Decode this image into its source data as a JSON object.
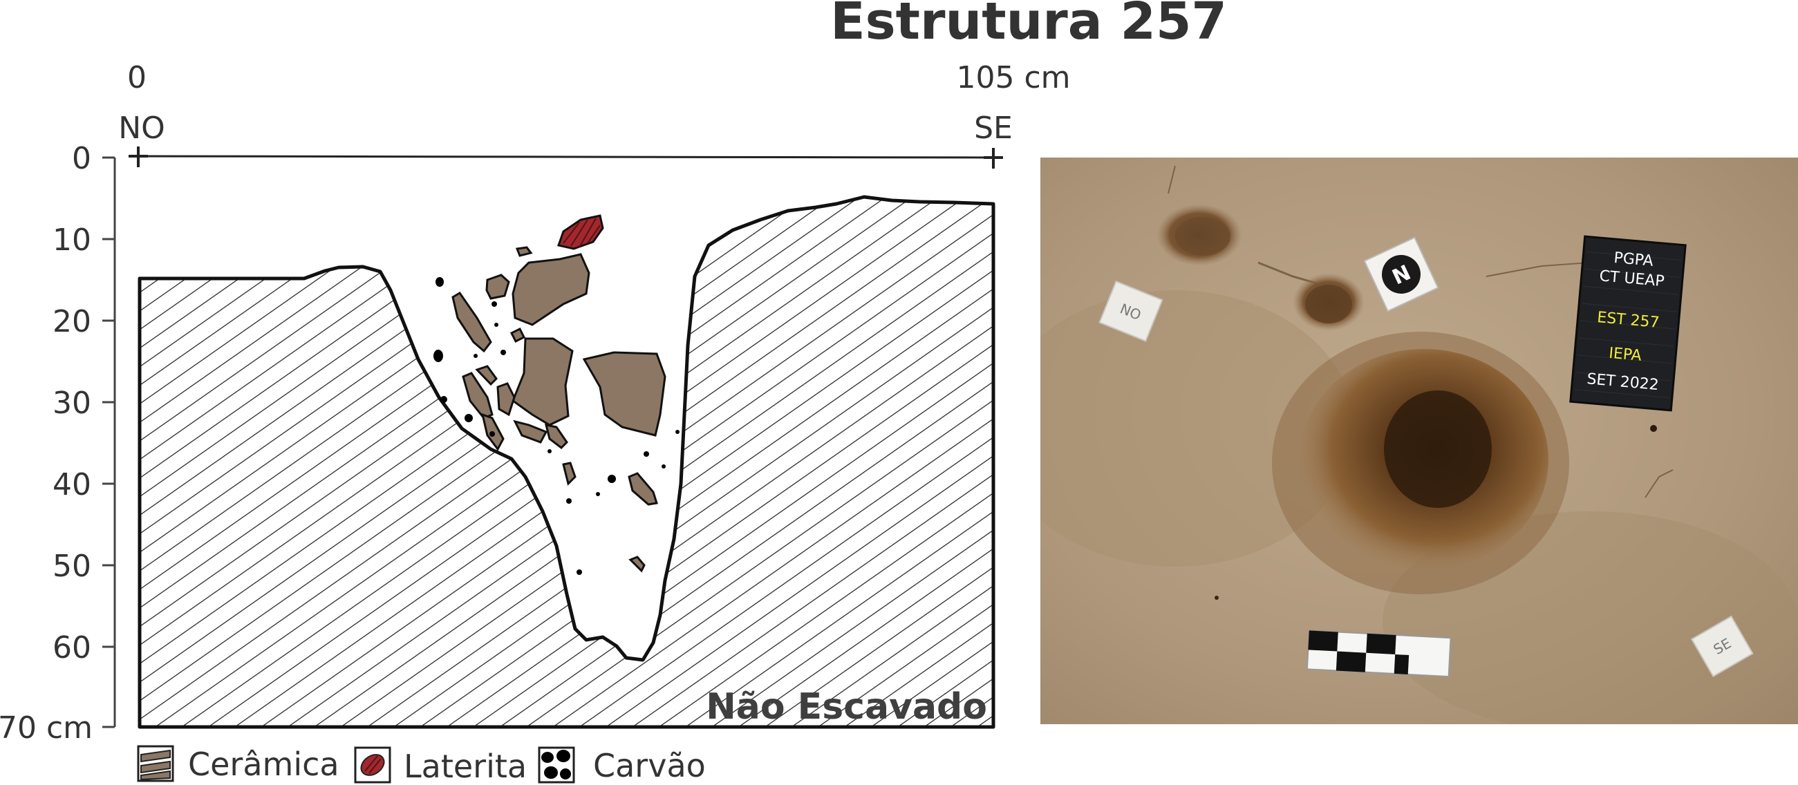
{
  "title": "Estrutura 257",
  "profile": {
    "distance_start": "0",
    "distance_end": "105 cm",
    "direction_left": "NO",
    "direction_right": "SE",
    "depth_ticks": [
      "0",
      "10",
      "20",
      "30",
      "40",
      "50",
      "60",
      "70 cm"
    ],
    "unexcavated_label": "Não Escavado"
  },
  "legend": [
    {
      "label": "Cerâmica",
      "icon": "ceramic-icon",
      "color": "#8b7764"
    },
    {
      "label": "Laterita",
      "icon": "laterite-icon",
      "color": "#a0282e"
    },
    {
      "label": "Carvão",
      "icon": "charcoal-icon",
      "color": "#000000"
    }
  ],
  "photo": {
    "board_lines": [
      "PGPA",
      "CT UEAP",
      "EST 257",
      "IEPA",
      "SET 2022"
    ],
    "marker_left": "NO",
    "marker_right": "SE",
    "north_symbol": "N"
  },
  "colors": {
    "ceramic": "#8b7764",
    "laterite": "#a0282e",
    "soil": "#b09a7f",
    "text": "#333333"
  }
}
